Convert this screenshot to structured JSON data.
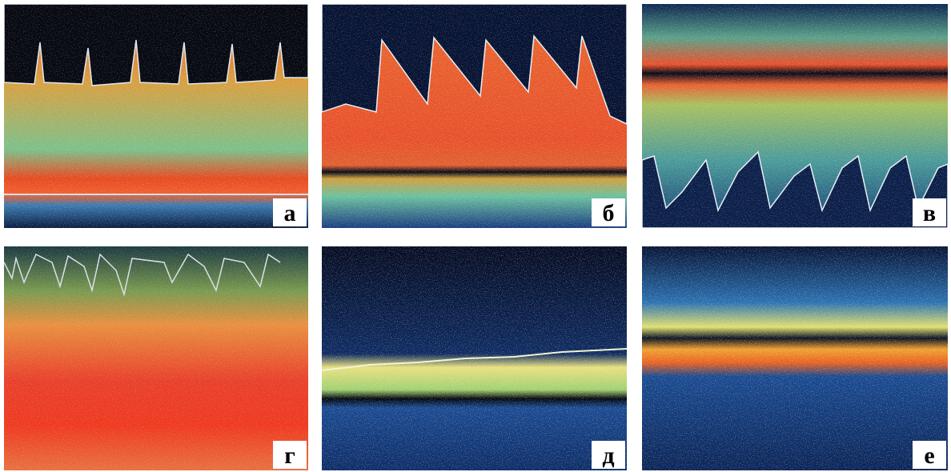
{
  "panels": [
    {
      "label": "а"
    },
    {
      "label": "б"
    },
    {
      "label": "в"
    },
    {
      "label": "г"
    },
    {
      "label": "д"
    },
    {
      "label": "е"
    }
  ]
}
